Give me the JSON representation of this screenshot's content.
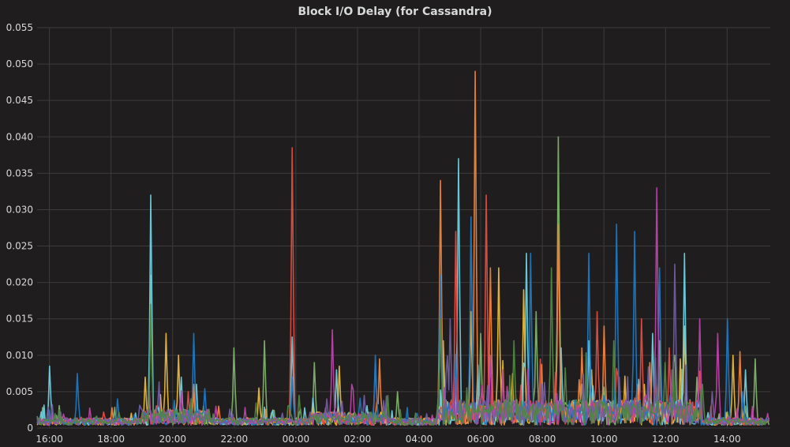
{
  "chart_data": {
    "type": "line",
    "title": "Block I/O Delay (for Cassandra)",
    "xlabel": "",
    "ylabel": "",
    "ylim": [
      0,
      0.055
    ],
    "y_ticks": [
      "0",
      "0.005",
      "0.010",
      "0.015",
      "0.020",
      "0.025",
      "0.030",
      "0.035",
      "0.040",
      "0.045",
      "0.050",
      "0.055"
    ],
    "x_ticks": [
      "16:00",
      "18:00",
      "20:00",
      "22:00",
      "00:00",
      "02:00",
      "04:00",
      "06:00",
      "08:00",
      "10:00",
      "12:00",
      "14:00"
    ],
    "x_range_hours": [
      15.6,
      39.4
    ],
    "grid": true,
    "legend": "none",
    "series": [
      {
        "color": "#7eb26d",
        "values": [
          [
            15.7,
            0.001
          ],
          [
            19.3,
            0.021
          ],
          [
            21.0,
            0.003
          ],
          [
            22.0,
            0.011
          ],
          [
            23.0,
            0.012
          ],
          [
            24.6,
            0.009
          ],
          [
            27.3,
            0.005
          ],
          [
            28.7,
            0.016
          ],
          [
            30.0,
            0.013
          ],
          [
            31.8,
            0.016
          ],
          [
            32.5,
            0.04
          ],
          [
            33.3,
            0.006
          ],
          [
            35.8,
            0.012
          ],
          [
            36.3,
            0.01
          ],
          [
            37.0,
            0.007
          ],
          [
            38.6,
            0.003
          ],
          [
            38.9,
            0.0095
          ],
          [
            39.3,
            0.001
          ]
        ]
      },
      {
        "color": "#eab839",
        "values": [
          [
            16.8,
            0.001
          ],
          [
            19.1,
            0.007
          ],
          [
            19.8,
            0.013
          ],
          [
            20.2,
            0.01
          ],
          [
            22.8,
            0.0055
          ],
          [
            25.4,
            0.0085
          ],
          [
            28.8,
            0.012
          ],
          [
            29.7,
            0.016
          ],
          [
            30.6,
            0.022
          ],
          [
            31.4,
            0.019
          ],
          [
            33.6,
            0.008
          ],
          [
            35.3,
            0.006
          ],
          [
            36.6,
            0.014
          ],
          [
            38.2,
            0.01
          ],
          [
            39.3,
            0.001
          ]
        ]
      },
      {
        "color": "#6ed0e0",
        "values": [
          [
            16.0,
            0.0085
          ],
          [
            19.3,
            0.032
          ],
          [
            20.3,
            0.007
          ],
          [
            23.9,
            0.0125
          ],
          [
            25.3,
            0.008
          ],
          [
            29.3,
            0.037
          ],
          [
            31.5,
            0.024
          ],
          [
            32.6,
            0.011
          ],
          [
            33.5,
            0.012
          ],
          [
            35.6,
            0.013
          ],
          [
            36.6,
            0.024
          ],
          [
            38.6,
            0.008
          ],
          [
            39.3,
            0.001
          ]
        ]
      },
      {
        "color": "#ef843c",
        "values": [
          [
            16.4,
            0.0015
          ],
          [
            20.7,
            0.006
          ],
          [
            21.5,
            0.003
          ],
          [
            26.7,
            0.0095
          ],
          [
            28.7,
            0.034
          ],
          [
            29.8,
            0.049
          ],
          [
            30.3,
            0.022
          ],
          [
            32.5,
            0.028
          ],
          [
            33.3,
            0.011
          ],
          [
            34.0,
            0.014
          ],
          [
            35.5,
            0.009
          ],
          [
            38.4,
            0.0105
          ],
          [
            39.3,
            0.001
          ]
        ]
      },
      {
        "color": "#e24d42",
        "values": [
          [
            17.5,
            0.001
          ],
          [
            20.5,
            0.005
          ],
          [
            23.9,
            0.0385
          ],
          [
            26.6,
            0.009
          ],
          [
            29.2,
            0.027
          ],
          [
            30.2,
            0.032
          ],
          [
            33.8,
            0.016
          ],
          [
            35.2,
            0.015
          ],
          [
            36.1,
            0.011
          ],
          [
            39.3,
            0.001
          ]
        ]
      },
      {
        "color": "#1f78c1",
        "values": [
          [
            16.9,
            0.0075
          ],
          [
            18.2,
            0.004
          ],
          [
            20.7,
            0.013
          ],
          [
            23.9,
            0.007
          ],
          [
            26.6,
            0.01
          ],
          [
            28.7,
            0.021
          ],
          [
            29.7,
            0.029
          ],
          [
            31.6,
            0.024
          ],
          [
            33.5,
            0.024
          ],
          [
            34.4,
            0.028
          ],
          [
            35.0,
            0.027
          ],
          [
            35.8,
            0.022
          ],
          [
            38.0,
            0.015
          ],
          [
            38.5,
            0.005
          ],
          [
            39.3,
            0.001
          ]
        ]
      },
      {
        "color": "#ba43a9",
        "values": [
          [
            19.2,
            0.002
          ],
          [
            21.4,
            0.003
          ],
          [
            25.2,
            0.0135
          ],
          [
            25.8,
            0.006
          ],
          [
            30.3,
            0.01
          ],
          [
            35.7,
            0.033
          ],
          [
            36.2,
            0.008
          ],
          [
            37.1,
            0.015
          ],
          [
            37.7,
            0.013
          ],
          [
            39.3,
            0.002
          ]
        ]
      },
      {
        "color": "#705da0",
        "values": [
          [
            17.0,
            0.0008
          ],
          [
            19.5,
            0.003
          ],
          [
            22.5,
            0.001
          ],
          [
            25.0,
            0.004
          ],
          [
            26.2,
            0.0045
          ],
          [
            29.0,
            0.015
          ],
          [
            32.0,
            0.006
          ],
          [
            34.5,
            0.007
          ],
          [
            36.3,
            0.0225
          ],
          [
            37.5,
            0.005
          ],
          [
            39.3,
            0.001
          ]
        ]
      },
      {
        "color": "#508642",
        "values": [
          [
            16.2,
            0.002
          ],
          [
            19.3,
            0.017
          ],
          [
            20.6,
            0.004
          ],
          [
            24.1,
            0.0045
          ],
          [
            28.7,
            0.015
          ],
          [
            31.1,
            0.012
          ],
          [
            32.3,
            0.022
          ],
          [
            34.3,
            0.012
          ],
          [
            36.0,
            0.009
          ],
          [
            37.2,
            0.006
          ],
          [
            39.3,
            0.001
          ]
        ]
      }
    ]
  }
}
